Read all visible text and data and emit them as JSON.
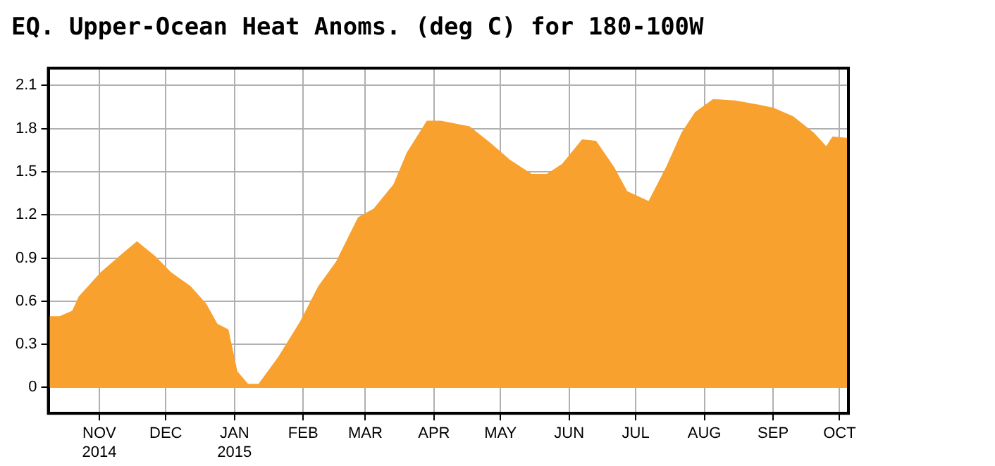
{
  "chart_data": {
    "type": "area",
    "title": "EQ. Upper-Ocean Heat Anoms. (deg C) for 180-100W",
    "color": "#f9a12e",
    "x": [
      "2014-10-09",
      "2014-10-14",
      "2014-10-20",
      "2014-10-23",
      "2014-11-02",
      "2014-11-11",
      "2014-11-18",
      "2014-11-26",
      "2014-12-03",
      "2014-12-12",
      "2014-12-19",
      "2014-12-24",
      "2014-12-29",
      "2015-01-02",
      "2015-01-07",
      "2015-01-12",
      "2015-01-21",
      "2015-01-31",
      "2015-02-08",
      "2015-02-16",
      "2015-02-26",
      "2015-03-05",
      "2015-03-14",
      "2015-03-20",
      "2015-03-29",
      "2015-04-04",
      "2015-04-17",
      "2015-04-26",
      "2015-05-05",
      "2015-05-15",
      "2015-05-22",
      "2015-05-29",
      "2015-06-07",
      "2015-06-13",
      "2015-06-21",
      "2015-06-27",
      "2015-07-07",
      "2015-07-15",
      "2015-07-22",
      "2015-07-28",
      "2015-08-05",
      "2015-08-15",
      "2015-08-26",
      "2015-09-01",
      "2015-09-10",
      "2015-09-19",
      "2015-09-25",
      "2015-09-28",
      "2015-10-05"
    ],
    "values": [
      0.49,
      0.49,
      0.53,
      0.63,
      0.8,
      0.92,
      1.01,
      0.91,
      0.8,
      0.7,
      0.58,
      0.44,
      0.4,
      0.11,
      0.02,
      0.02,
      0.21,
      0.46,
      0.7,
      0.87,
      1.18,
      1.24,
      1.41,
      1.63,
      1.85,
      1.85,
      1.81,
      1.7,
      1.58,
      1.48,
      1.48,
      1.55,
      1.72,
      1.71,
      1.53,
      1.36,
      1.29,
      1.53,
      1.77,
      1.91,
      2.0,
      1.99,
      1.96,
      1.94,
      1.88,
      1.77,
      1.67,
      1.74,
      1.73
    ],
    "xlim": [
      "2014-10-09",
      "2015-10-05"
    ],
    "xticks": [
      {
        "value": "2014-11-01",
        "label": "NOV\n2014"
      },
      {
        "value": "2014-12-01",
        "label": "DEC"
      },
      {
        "value": "2015-01-01",
        "label": "JAN\n2015"
      },
      {
        "value": "2015-02-01",
        "label": "FEB"
      },
      {
        "value": "2015-03-01",
        "label": "MAR"
      },
      {
        "value": "2015-04-01",
        "label": "APR"
      },
      {
        "value": "2015-05-01",
        "label": "MAY"
      },
      {
        "value": "2015-06-01",
        "label": "JUN"
      },
      {
        "value": "2015-07-01",
        "label": "JUL"
      },
      {
        "value": "2015-08-01",
        "label": "AUG"
      },
      {
        "value": "2015-09-01",
        "label": "SEP"
      },
      {
        "value": "2015-10-01",
        "label": "OCT"
      }
    ],
    "ylim": [
      -0.18,
      2.22
    ],
    "yticks": [
      0,
      0.3,
      0.6,
      0.9,
      1.2,
      1.5,
      1.8,
      2.1
    ],
    "grid": true,
    "legend": false,
    "line_style": "solid",
    "marker": "none"
  }
}
